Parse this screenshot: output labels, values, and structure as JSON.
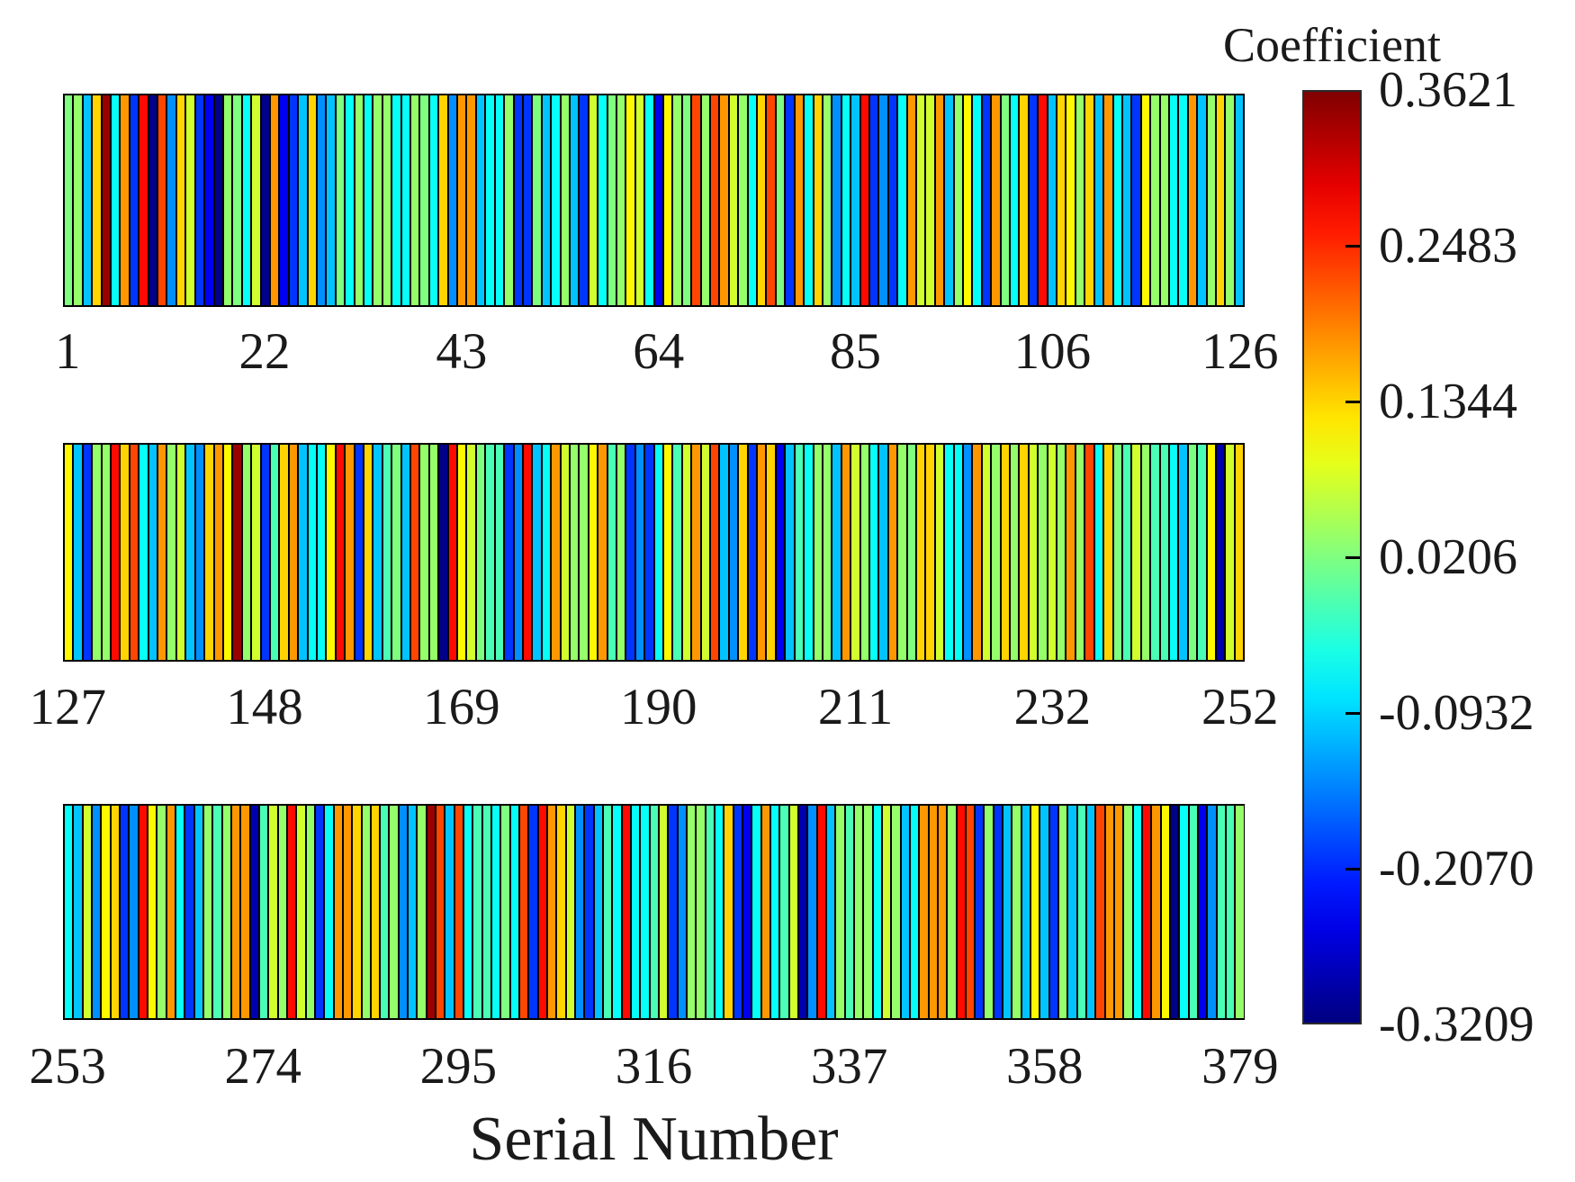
{
  "xlabel": "Serial Number",
  "colorbar": {
    "label": "Coefficient",
    "vmin": -0.3209,
    "vmax": 0.3621,
    "colormap": "jet",
    "ticks": [
      {
        "label": "0.3621",
        "value": 0.3621
      },
      {
        "label": "0.2483",
        "value": 0.2483
      },
      {
        "label": "0.1344",
        "value": 0.1344
      },
      {
        "label": "0.0206",
        "value": 0.0206
      },
      {
        "label": "-0.0932",
        "value": -0.0932
      },
      {
        "label": "-0.2070",
        "value": -0.207
      },
      {
        "label": "-0.3209",
        "value": -0.3209
      }
    ]
  },
  "chart_data": {
    "type": "heatmap",
    "title": "",
    "xlabel": "Serial Number",
    "colorbar_label": "Coefficient",
    "colormap": "jet",
    "vmin": -0.3209,
    "vmax": 0.3621,
    "grid": false,
    "rows": [
      {
        "start": 1,
        "end": 126,
        "ticks": [
          {
            "bar": 1,
            "label": "1"
          },
          {
            "bar": 22,
            "label": "22"
          },
          {
            "bar": 43,
            "label": "43"
          },
          {
            "bar": 64,
            "label": "64"
          },
          {
            "bar": 85,
            "label": "85"
          },
          {
            "bar": 106,
            "label": "106"
          },
          {
            "bar": 126,
            "label": "126"
          }
        ],
        "values": [
          0.02,
          0.035,
          -0.105,
          0.135,
          0.345,
          -0.06,
          0.175,
          -0.2,
          0.27,
          -0.315,
          0.23,
          -0.14,
          0.135,
          0.075,
          -0.2,
          -0.245,
          -0.315,
          0.035,
          0.02,
          -0.06,
          0.075,
          -0.315,
          0.175,
          -0.245,
          -0.2,
          -0.105,
          0.135,
          -0.14,
          -0.105,
          0.02,
          -0.06,
          0.035,
          -0.06,
          0.035,
          0.035,
          -0.06,
          -0.06,
          0.035,
          0.02,
          -0.06,
          0.135,
          -0.14,
          0.175,
          0.175,
          -0.105,
          -0.06,
          -0.06,
          0.035,
          -0.2,
          -0.2,
          0.02,
          -0.105,
          -0.06,
          0.035,
          -0.105,
          -0.2,
          0.075,
          -0.06,
          0.02,
          0.035,
          0.11,
          0.075,
          -0.06,
          -0.245,
          0.11,
          0.035,
          0.02,
          0.23,
          0.035,
          0.23,
          0.175,
          0.075,
          0.035,
          -0.06,
          0.135,
          0.23,
          0.02,
          -0.2,
          0.175,
          -0.06,
          0.135,
          0.035,
          -0.14,
          -0.06,
          -0.105,
          0.27,
          -0.2,
          -0.14,
          -0.2,
          -0.06,
          0.175,
          0.075,
          0.075,
          0.175,
          -0.105,
          0.035,
          0.11,
          -0.06,
          -0.2,
          0.175,
          0.02,
          -0.06,
          0.135,
          -0.2,
          0.27,
          -0.105,
          0.135,
          0.11,
          0.035,
          0.135,
          -0.105,
          0.175,
          -0.06,
          -0.105,
          -0.2,
          0.11,
          0.035,
          0.035,
          -0.06,
          -0.06,
          0.175,
          -0.105,
          0.035,
          0.135,
          0.035,
          -0.105
        ]
      },
      {
        "start": 127,
        "end": 252,
        "ticks": [
          {
            "bar": 1,
            "label": "127"
          },
          {
            "bar": 22,
            "label": "148"
          },
          {
            "bar": 43,
            "label": "169"
          },
          {
            "bar": 64,
            "label": "190"
          },
          {
            "bar": 85,
            "label": "211"
          },
          {
            "bar": 106,
            "label": "232"
          },
          {
            "bar": 126,
            "label": "252"
          }
        ],
        "values": [
          0.11,
          -0.105,
          -0.2,
          0.035,
          0.035,
          0.27,
          0.135,
          0.23,
          -0.06,
          -0.105,
          0.175,
          0.035,
          0.075,
          -0.105,
          -0.14,
          0.135,
          0.175,
          0.11,
          0.345,
          0.035,
          0.075,
          -0.2,
          -0.015,
          0.135,
          0.175,
          -0.105,
          -0.06,
          -0.06,
          0.11,
          0.27,
          0.175,
          -0.2,
          0.135,
          -0.105,
          -0.015,
          0.02,
          -0.105,
          0.23,
          0.035,
          0.035,
          -0.315,
          0.27,
          0.11,
          0.075,
          0.02,
          -0.015,
          -0.015,
          -0.2,
          -0.14,
          0.27,
          -0.105,
          -0.06,
          0.175,
          0.075,
          0.035,
          0.035,
          0.11,
          0.175,
          -0.015,
          0.035,
          -0.2,
          -0.14,
          -0.2,
          -0.06,
          0.11,
          -0.015,
          0.075,
          0.175,
          0.075,
          0.23,
          -0.105,
          -0.14,
          0.135,
          -0.2,
          0.175,
          0.135,
          -0.245,
          -0.105,
          -0.015,
          -0.06,
          0.035,
          0.035,
          -0.105,
          0.175,
          0.075,
          0.035,
          -0.06,
          -0.105,
          0.175,
          0.035,
          0.02,
          0.135,
          0.135,
          0.075,
          -0.06,
          -0.06,
          -0.14,
          0.175,
          0.075,
          0.035,
          0.135,
          0.035,
          0.135,
          0.075,
          0.035,
          0.075,
          0.035,
          0.175,
          0.035,
          0.23,
          -0.06,
          0.135,
          0.02,
          -0.015,
          0.075,
          0.035,
          -0.015,
          -0.015,
          -0.06,
          -0.105,
          0.02,
          -0.015,
          0.11,
          -0.29,
          0.075,
          0.135
        ]
      },
      {
        "start": 253,
        "end": 379,
        "ticks": [
          {
            "bar": 1,
            "label": "253"
          },
          {
            "bar": 22,
            "label": "274"
          },
          {
            "bar": 43,
            "label": "295"
          },
          {
            "bar": 64,
            "label": "316"
          },
          {
            "bar": 85,
            "label": "337"
          },
          {
            "bar": 106,
            "label": "358"
          },
          {
            "bar": 127,
            "label": "379"
          }
        ],
        "values": [
          -0.06,
          -0.105,
          0.075,
          -0.14,
          0.11,
          0.135,
          -0.2,
          -0.14,
          0.27,
          0.11,
          0.035,
          0.175,
          -0.06,
          -0.2,
          -0.105,
          0.035,
          -0.015,
          0.035,
          0.175,
          0.175,
          -0.29,
          -0.015,
          0.075,
          0.035,
          0.27,
          0.075,
          0.035,
          -0.2,
          -0.06,
          0.175,
          0.175,
          0.135,
          0.035,
          0.135,
          -0.015,
          0.035,
          -0.14,
          -0.105,
          0.035,
          0.345,
          0.23,
          -0.105,
          0.23,
          -0.06,
          -0.015,
          -0.015,
          -0.06,
          0.02,
          -0.06,
          0.23,
          -0.2,
          0.27,
          0.175,
          0.135,
          0.075,
          -0.14,
          -0.2,
          -0.105,
          -0.015,
          -0.06,
          0.27,
          -0.06,
          -0.06,
          -0.015,
          0.075,
          -0.2,
          -0.14,
          0.035,
          0.035,
          -0.015,
          -0.06,
          0.135,
          -0.2,
          -0.245,
          -0.06,
          0.175,
          -0.06,
          -0.015,
          0.075,
          -0.29,
          -0.14,
          0.27,
          -0.105,
          0.035,
          -0.015,
          0.035,
          0.035,
          -0.06,
          0.075,
          0.035,
          -0.105,
          -0.06,
          0.175,
          0.175,
          0.175,
          0.035,
          0.27,
          0.23,
          -0.2,
          0.035,
          -0.2,
          -0.105,
          0.035,
          -0.105,
          0.11,
          -0.105,
          -0.2,
          0.035,
          -0.105,
          -0.015,
          -0.105,
          0.23,
          0.175,
          0.175,
          0.035,
          -0.06,
          0.27,
          0.175,
          0.11,
          -0.315,
          -0.06,
          -0.015,
          -0.245,
          -0.14,
          -0.015,
          -0.015,
          0.035
        ]
      }
    ]
  }
}
